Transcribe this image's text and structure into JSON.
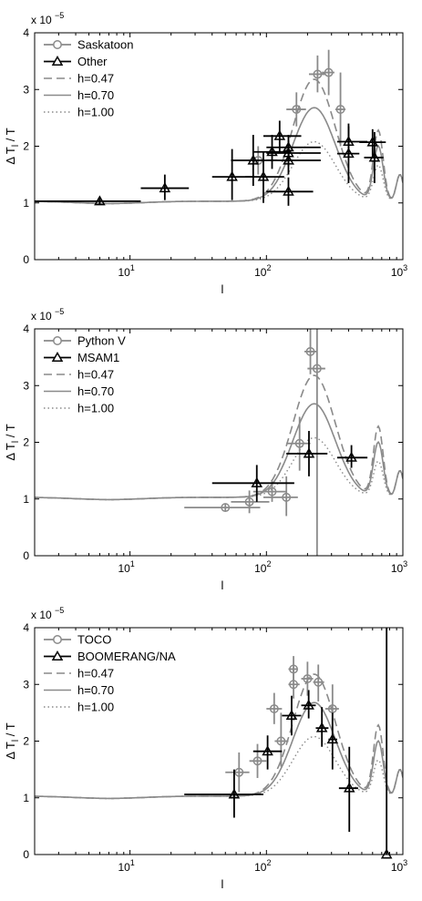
{
  "colors": {
    "gray": "#8a8a8a",
    "black": "#000000",
    "axis": "#000000"
  },
  "chart_data": [
    {
      "type": "line",
      "xscale": "log",
      "xlim": [
        2,
        1000
      ],
      "ylim": [
        0,
        4
      ],
      "xlabel": "l",
      "ylabel": "Δ T_l / T",
      "exponent_label": "x 10",
      "exponent": "−5",
      "grid": false,
      "legend_position": "top-left",
      "x_ticks": [
        {
          "x": 10,
          "base": "10",
          "exp": "1"
        },
        {
          "x": 100,
          "base": "10",
          "exp": "2"
        },
        {
          "x": 1000,
          "base": "10",
          "exp": "3"
        }
      ],
      "y_ticks": [
        {
          "y": 0,
          "label": "0"
        },
        {
          "y": 1,
          "label": "1"
        },
        {
          "y": 2,
          "label": "2"
        },
        {
          "y": 3,
          "label": "3"
        },
        {
          "y": 4,
          "label": "4"
        }
      ],
      "legend": [
        "Saskatoon",
        "Other",
        "h=0.47",
        "h=0.70",
        "h=1.00"
      ],
      "data_series": [
        {
          "name": "Saskatoon",
          "color": "#8a8a8a",
          "marker": "circle",
          "points": [
            {
              "x": 87,
              "y": 1.75,
              "xerr": [
                78,
                97
              ],
              "yerr": [
                1.5,
                2.0
              ]
            },
            {
              "x": 166,
              "y": 2.65,
              "xerr": [
                140,
                195
              ],
              "yerr": [
                2.35,
                2.95
              ]
            },
            {
              "x": 237,
              "y": 3.27,
              "xerr": [
                205,
                270
              ],
              "yerr": [
                2.95,
                3.6
              ]
            },
            {
              "x": 286,
              "y": 3.3,
              "xerr": [
                255,
                315
              ],
              "yerr": [
                2.9,
                3.7
              ]
            },
            {
              "x": 349,
              "y": 2.65,
              "xerr": [
                320,
                380
              ],
              "yerr": [
                2.0,
                3.3
              ]
            }
          ]
        },
        {
          "name": "Other",
          "color": "#000000",
          "marker": "triangle",
          "points": [
            {
              "x": 6,
              "y": 1.03,
              "xerr": [
                2,
                12
              ],
              "yerr": [
                0.98,
                1.08
              ]
            },
            {
              "x": 18,
              "y": 1.26,
              "xerr": [
                12,
                27
              ],
              "yerr": [
                1.05,
                1.5
              ]
            },
            {
              "x": 56,
              "y": 1.46,
              "xerr": [
                40,
                80
              ],
              "yerr": [
                1.05,
                1.95
              ]
            },
            {
              "x": 80,
              "y": 1.75,
              "xerr": [
                55,
                120
              ],
              "yerr": [
                1.3,
                2.2
              ]
            },
            {
              "x": 95,
              "y": 1.46,
              "xerr": [
                70,
                135
              ],
              "yerr": [
                1.0,
                1.9
              ]
            },
            {
              "x": 110,
              "y": 1.9,
              "xerr": [
                80,
                150
              ],
              "yerr": [
                1.6,
                2.2
              ]
            },
            {
              "x": 125,
              "y": 2.18,
              "xerr": [
                95,
                180
              ],
              "yerr": [
                1.9,
                2.45
              ]
            },
            {
              "x": 145,
              "y": 1.98,
              "xerr": [
                100,
                250
              ],
              "yerr": [
                1.75,
                2.2
              ]
            },
            {
              "x": 145,
              "y": 1.88,
              "xerr": [
                100,
                250
              ],
              "yerr": [
                1.65,
                2.1
              ]
            },
            {
              "x": 145,
              "y": 1.75,
              "xerr": [
                100,
                250
              ],
              "yerr": [
                1.5,
                2.0
              ]
            },
            {
              "x": 145,
              "y": 1.2,
              "xerr": [
                100,
                220
              ],
              "yerr": [
                0.95,
                1.45
              ]
            },
            {
              "x": 400,
              "y": 2.08,
              "xerr": [
                330,
                550
              ],
              "yerr": [
                1.8,
                2.35
              ]
            },
            {
              "x": 400,
              "y": 1.87,
              "xerr": [
                330,
                480
              ],
              "yerr": [
                1.35,
                2.4
              ]
            },
            {
              "x": 600,
              "y": 2.07,
              "xerr": [
                480,
                750
              ],
              "yerr": [
                1.8,
                2.3
              ]
            },
            {
              "x": 620,
              "y": 1.8,
              "xerr": [
                520,
                720
              ],
              "yerr": [
                1.35,
                2.25
              ]
            }
          ]
        }
      ]
    },
    {
      "type": "line",
      "xscale": "log",
      "xlim": [
        2,
        1000
      ],
      "ylim": [
        0,
        4
      ],
      "xlabel": "l",
      "ylabel": "Δ T_l / T",
      "exponent_label": "x 10",
      "exponent": "−5",
      "grid": false,
      "legend_position": "top-left",
      "x_ticks": [
        {
          "x": 10,
          "base": "10",
          "exp": "1"
        },
        {
          "x": 100,
          "base": "10",
          "exp": "2"
        },
        {
          "x": 1000,
          "base": "10",
          "exp": "3"
        }
      ],
      "y_ticks": [
        {
          "y": 0,
          "label": "0"
        },
        {
          "y": 1,
          "label": "1"
        },
        {
          "y": 2,
          "label": "2"
        },
        {
          "y": 3,
          "label": "3"
        },
        {
          "y": 4,
          "label": "4"
        }
      ],
      "legend": [
        "Python V",
        "MSAM1",
        "h=0.47",
        "h=0.70",
        "h=1.00"
      ],
      "data_series": [
        {
          "name": "Python V",
          "color": "#8a8a8a",
          "marker": "circle",
          "points": [
            {
              "x": 50,
              "y": 0.85,
              "xerr": [
                25,
                90
              ],
              "yerr": [
                0.78,
                0.92
              ]
            },
            {
              "x": 75,
              "y": 0.95,
              "xerr": [
                55,
                105
              ],
              "yerr": [
                0.75,
                1.15
              ]
            },
            {
              "x": 110,
              "y": 1.13,
              "xerr": [
                80,
                140
              ],
              "yerr": [
                0.95,
                1.32
              ]
            },
            {
              "x": 140,
              "y": 1.03,
              "xerr": [
                95,
                170
              ],
              "yerr": [
                0.7,
                1.4
              ]
            },
            {
              "x": 175,
              "y": 1.98,
              "xerr": [
                140,
                210
              ],
              "yerr": [
                1.5,
                2.45
              ]
            },
            {
              "x": 210,
              "y": 3.6,
              "xerr": [
                190,
                235
              ],
              "yerr": [
                3.2,
                4.0
              ]
            },
            {
              "x": 235,
              "y": 3.3,
              "xerr": [
                200,
                270
              ],
              "yerr": [
                0.0,
                4.0
              ]
            }
          ]
        },
        {
          "name": "MSAM1",
          "color": "#000000",
          "marker": "triangle",
          "points": [
            {
              "x": 85,
              "y": 1.28,
              "xerr": [
                40,
                160
              ],
              "yerr": [
                0.95,
                1.6
              ]
            },
            {
              "x": 205,
              "y": 1.8,
              "xerr": [
                140,
                280
              ],
              "yerr": [
                1.4,
                2.2
              ]
            },
            {
              "x": 420,
              "y": 1.73,
              "xerr": [
                330,
                550
              ],
              "yerr": [
                1.55,
                1.95
              ]
            }
          ]
        }
      ]
    },
    {
      "type": "line",
      "xscale": "log",
      "xlim": [
        2,
        1000
      ],
      "ylim": [
        0,
        4
      ],
      "xlabel": "l",
      "ylabel": "Δ T_l / T",
      "exponent_label": "x 10",
      "exponent": "−5",
      "grid": false,
      "legend_position": "top-left",
      "x_ticks": [
        {
          "x": 10,
          "base": "10",
          "exp": "1"
        },
        {
          "x": 100,
          "base": "10",
          "exp": "2"
        },
        {
          "x": 1000,
          "base": "10",
          "exp": "3"
        }
      ],
      "y_ticks": [
        {
          "y": 0,
          "label": "0"
        },
        {
          "y": 1,
          "label": "1"
        },
        {
          "y": 2,
          "label": "2"
        },
        {
          "y": 3,
          "label": "3"
        },
        {
          "y": 4,
          "label": "4"
        }
      ],
      "legend": [
        "TOCO",
        "BOOMERANG/NA",
        "h=0.47",
        "h=0.70",
        "h=1.00"
      ],
      "data_series": [
        {
          "name": "TOCO",
          "color": "#8a8a8a",
          "marker": "circle",
          "points": [
            {
              "x": 63,
              "y": 1.45,
              "xerr": [
                50,
                75
              ],
              "yerr": [
                1.1,
                1.8
              ]
            },
            {
              "x": 86,
              "y": 1.65,
              "xerr": [
                75,
                100
              ],
              "yerr": [
                1.35,
                1.95
              ]
            },
            {
              "x": 114,
              "y": 2.57,
              "xerr": [
                100,
                130
              ],
              "yerr": [
                2.3,
                2.85
              ]
            },
            {
              "x": 128,
              "y": 2.0,
              "xerr": [
                115,
                145
              ],
              "yerr": [
                1.55,
                2.5
              ]
            },
            {
              "x": 158,
              "y": 3.27,
              "xerr": [
                145,
                170
              ],
              "yerr": [
                3.05,
                3.5
              ]
            },
            {
              "x": 158,
              "y": 3.0,
              "xerr": [
                145,
                175
              ],
              "yerr": [
                2.75,
                3.3
              ]
            },
            {
              "x": 200,
              "y": 3.1,
              "xerr": [
                180,
                220
              ],
              "yerr": [
                2.8,
                3.4
              ]
            },
            {
              "x": 240,
              "y": 3.04,
              "xerr": [
                220,
                265
              ],
              "yerr": [
                2.7,
                3.35
              ]
            },
            {
              "x": 305,
              "y": 2.57,
              "xerr": [
                270,
                340
              ],
              "yerr": [
                2.1,
                3.0
              ]
            }
          ]
        },
        {
          "name": "BOOMERANG/NA",
          "color": "#000000",
          "marker": "triangle",
          "points": [
            {
              "x": 58,
              "y": 1.06,
              "xerr": [
                25,
                95
              ],
              "yerr": [
                0.65,
                1.5
              ]
            },
            {
              "x": 102,
              "y": 1.82,
              "xerr": [
                80,
                130
              ],
              "yerr": [
                1.5,
                2.1
              ]
            },
            {
              "x": 153,
              "y": 2.45,
              "xerr": [
                130,
                180
              ],
              "yerr": [
                2.1,
                2.8
              ]
            },
            {
              "x": 204,
              "y": 2.63,
              "xerr": [
                180,
                230
              ],
              "yerr": [
                2.4,
                2.9
              ]
            },
            {
              "x": 255,
              "y": 2.23,
              "xerr": [
                230,
                285
              ],
              "yerr": [
                1.9,
                2.6
              ]
            },
            {
              "x": 305,
              "y": 2.03,
              "xerr": [
                285,
                330
              ],
              "yerr": [
                1.5,
                2.5
              ]
            },
            {
              "x": 405,
              "y": 1.17,
              "xerr": [
                340,
                470
              ],
              "yerr": [
                0.4,
                1.9
              ]
            },
            {
              "x": 760,
              "y": 0.0,
              "xerr": [
                760,
                760
              ],
              "yerr": [
                0.0,
                4.0
              ]
            }
          ]
        }
      ]
    }
  ]
}
